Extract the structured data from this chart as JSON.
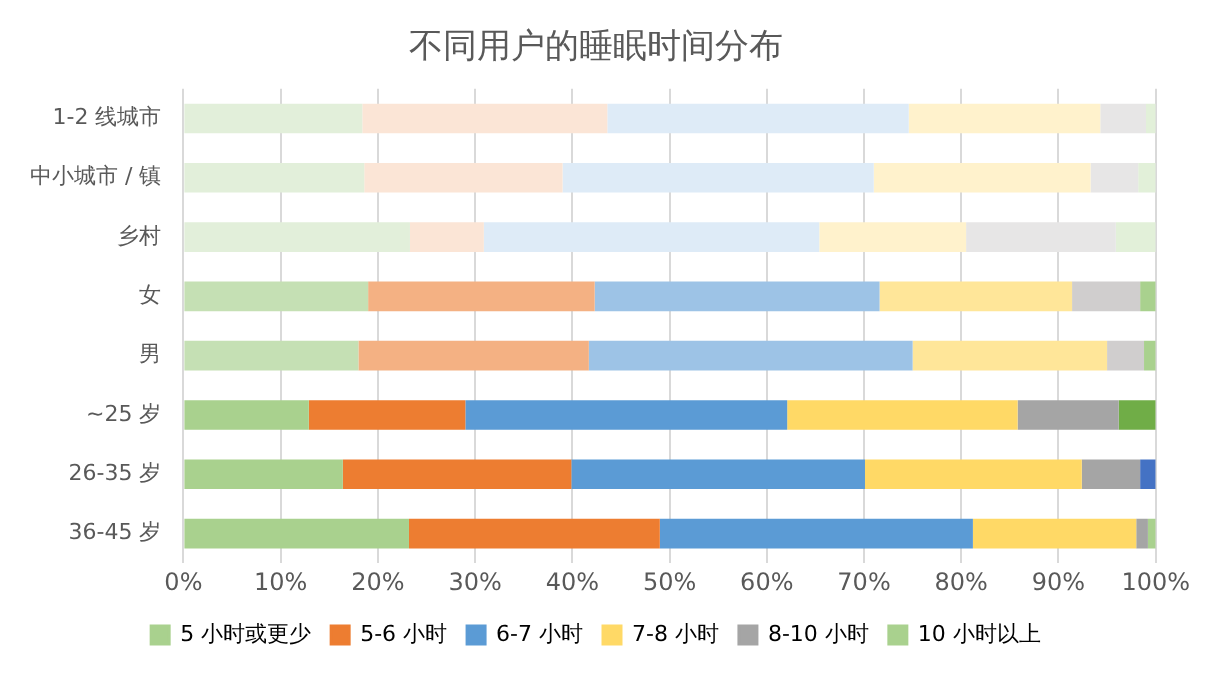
{
  "chart_data": {
    "type": "bar",
    "orientation": "horizontal",
    "stacked": true,
    "title": "不同用户的睡眠时间分布",
    "categories": [
      "1-2 线城市",
      "中小城市 / 镇",
      "乡村",
      "女",
      "男",
      "~25 岁",
      "26-35 岁",
      "36-45 岁"
    ],
    "series": [
      {
        "name": "5 小时或更少",
        "color": "#a9d18e",
        "colors": [
          "#e2efda",
          "#e2efda",
          "#e2efda",
          "#c5e0b4",
          "#c5e0b4",
          "#a9d18e",
          "#a9d18e",
          "#a9d18e"
        ],
        "values": [
          18.4,
          18.6,
          23.3,
          19.0,
          18.0,
          12.9,
          16.4,
          23.2
        ]
      },
      {
        "name": "5-6 小时",
        "color": "#ed7d31",
        "colors": [
          "#fbe5d6",
          "#fbe5d6",
          "#fbe5d6",
          "#f4b183",
          "#f4b183",
          "#ed7d31",
          "#ed7d31",
          "#ed7d31"
        ],
        "values": [
          25.2,
          20.4,
          7.6,
          23.3,
          23.7,
          16.1,
          23.5,
          25.8
        ]
      },
      {
        "name": "6-7 小时",
        "color": "#5b9bd5",
        "colors": [
          "#deebf7",
          "#deebf7",
          "#deebf7",
          "#9dc3e6",
          "#9dc3e6",
          "#5b9bd5",
          "#5b9bd5",
          "#5b9bd5"
        ],
        "values": [
          31.0,
          32.0,
          34.5,
          29.3,
          33.3,
          33.1,
          30.2,
          32.2
        ]
      },
      {
        "name": "7-8 小时",
        "color": "#ffd966",
        "colors": [
          "#fff2cc",
          "#fff2cc",
          "#fff2cc",
          "#ffe699",
          "#ffe699",
          "#ffd966",
          "#ffd966",
          "#ffd966"
        ],
        "values": [
          19.7,
          22.3,
          15.1,
          19.8,
          20.0,
          23.7,
          22.3,
          16.8
        ]
      },
      {
        "name": "8-10 小时",
        "color": "#a5a5a5",
        "colors": [
          "#e7e6e6",
          "#e7e6e6",
          "#e7e6e6",
          "#d0cece",
          "#d0cece",
          "#a5a5a5",
          "#a5a5a5",
          "#a5a5a5"
        ],
        "values": [
          4.7,
          4.9,
          15.4,
          7.0,
          3.8,
          10.4,
          6.0,
          1.2
        ]
      },
      {
        "name": "10 小时以上",
        "color": "#a9d18e",
        "colors": [
          "#e2f0d9",
          "#e2f0d9",
          "#e2f0d9",
          "#a9d18e",
          "#a9d18e",
          "#70ad47",
          "#4472c4",
          "#a9d18e"
        ],
        "values": [
          1.0,
          1.8,
          4.1,
          1.6,
          1.2,
          3.8,
          1.6,
          0.8
        ]
      }
    ],
    "xlim": [
      0,
      100
    ],
    "xticks": [
      {
        "value": 0,
        "label": "0%"
      },
      {
        "value": 10,
        "label": "10%"
      },
      {
        "value": 20,
        "label": "20%"
      },
      {
        "value": 30,
        "label": "30%"
      },
      {
        "value": 40,
        "label": "40%"
      },
      {
        "value": 50,
        "label": "50%"
      },
      {
        "value": 60,
        "label": "60%"
      },
      {
        "value": 70,
        "label": "70%"
      },
      {
        "value": 80,
        "label": "80%"
      },
      {
        "value": 90,
        "label": "90%"
      },
      {
        "value": 100,
        "label": "100%"
      }
    ],
    "grid": "x",
    "legend": "bottom"
  }
}
